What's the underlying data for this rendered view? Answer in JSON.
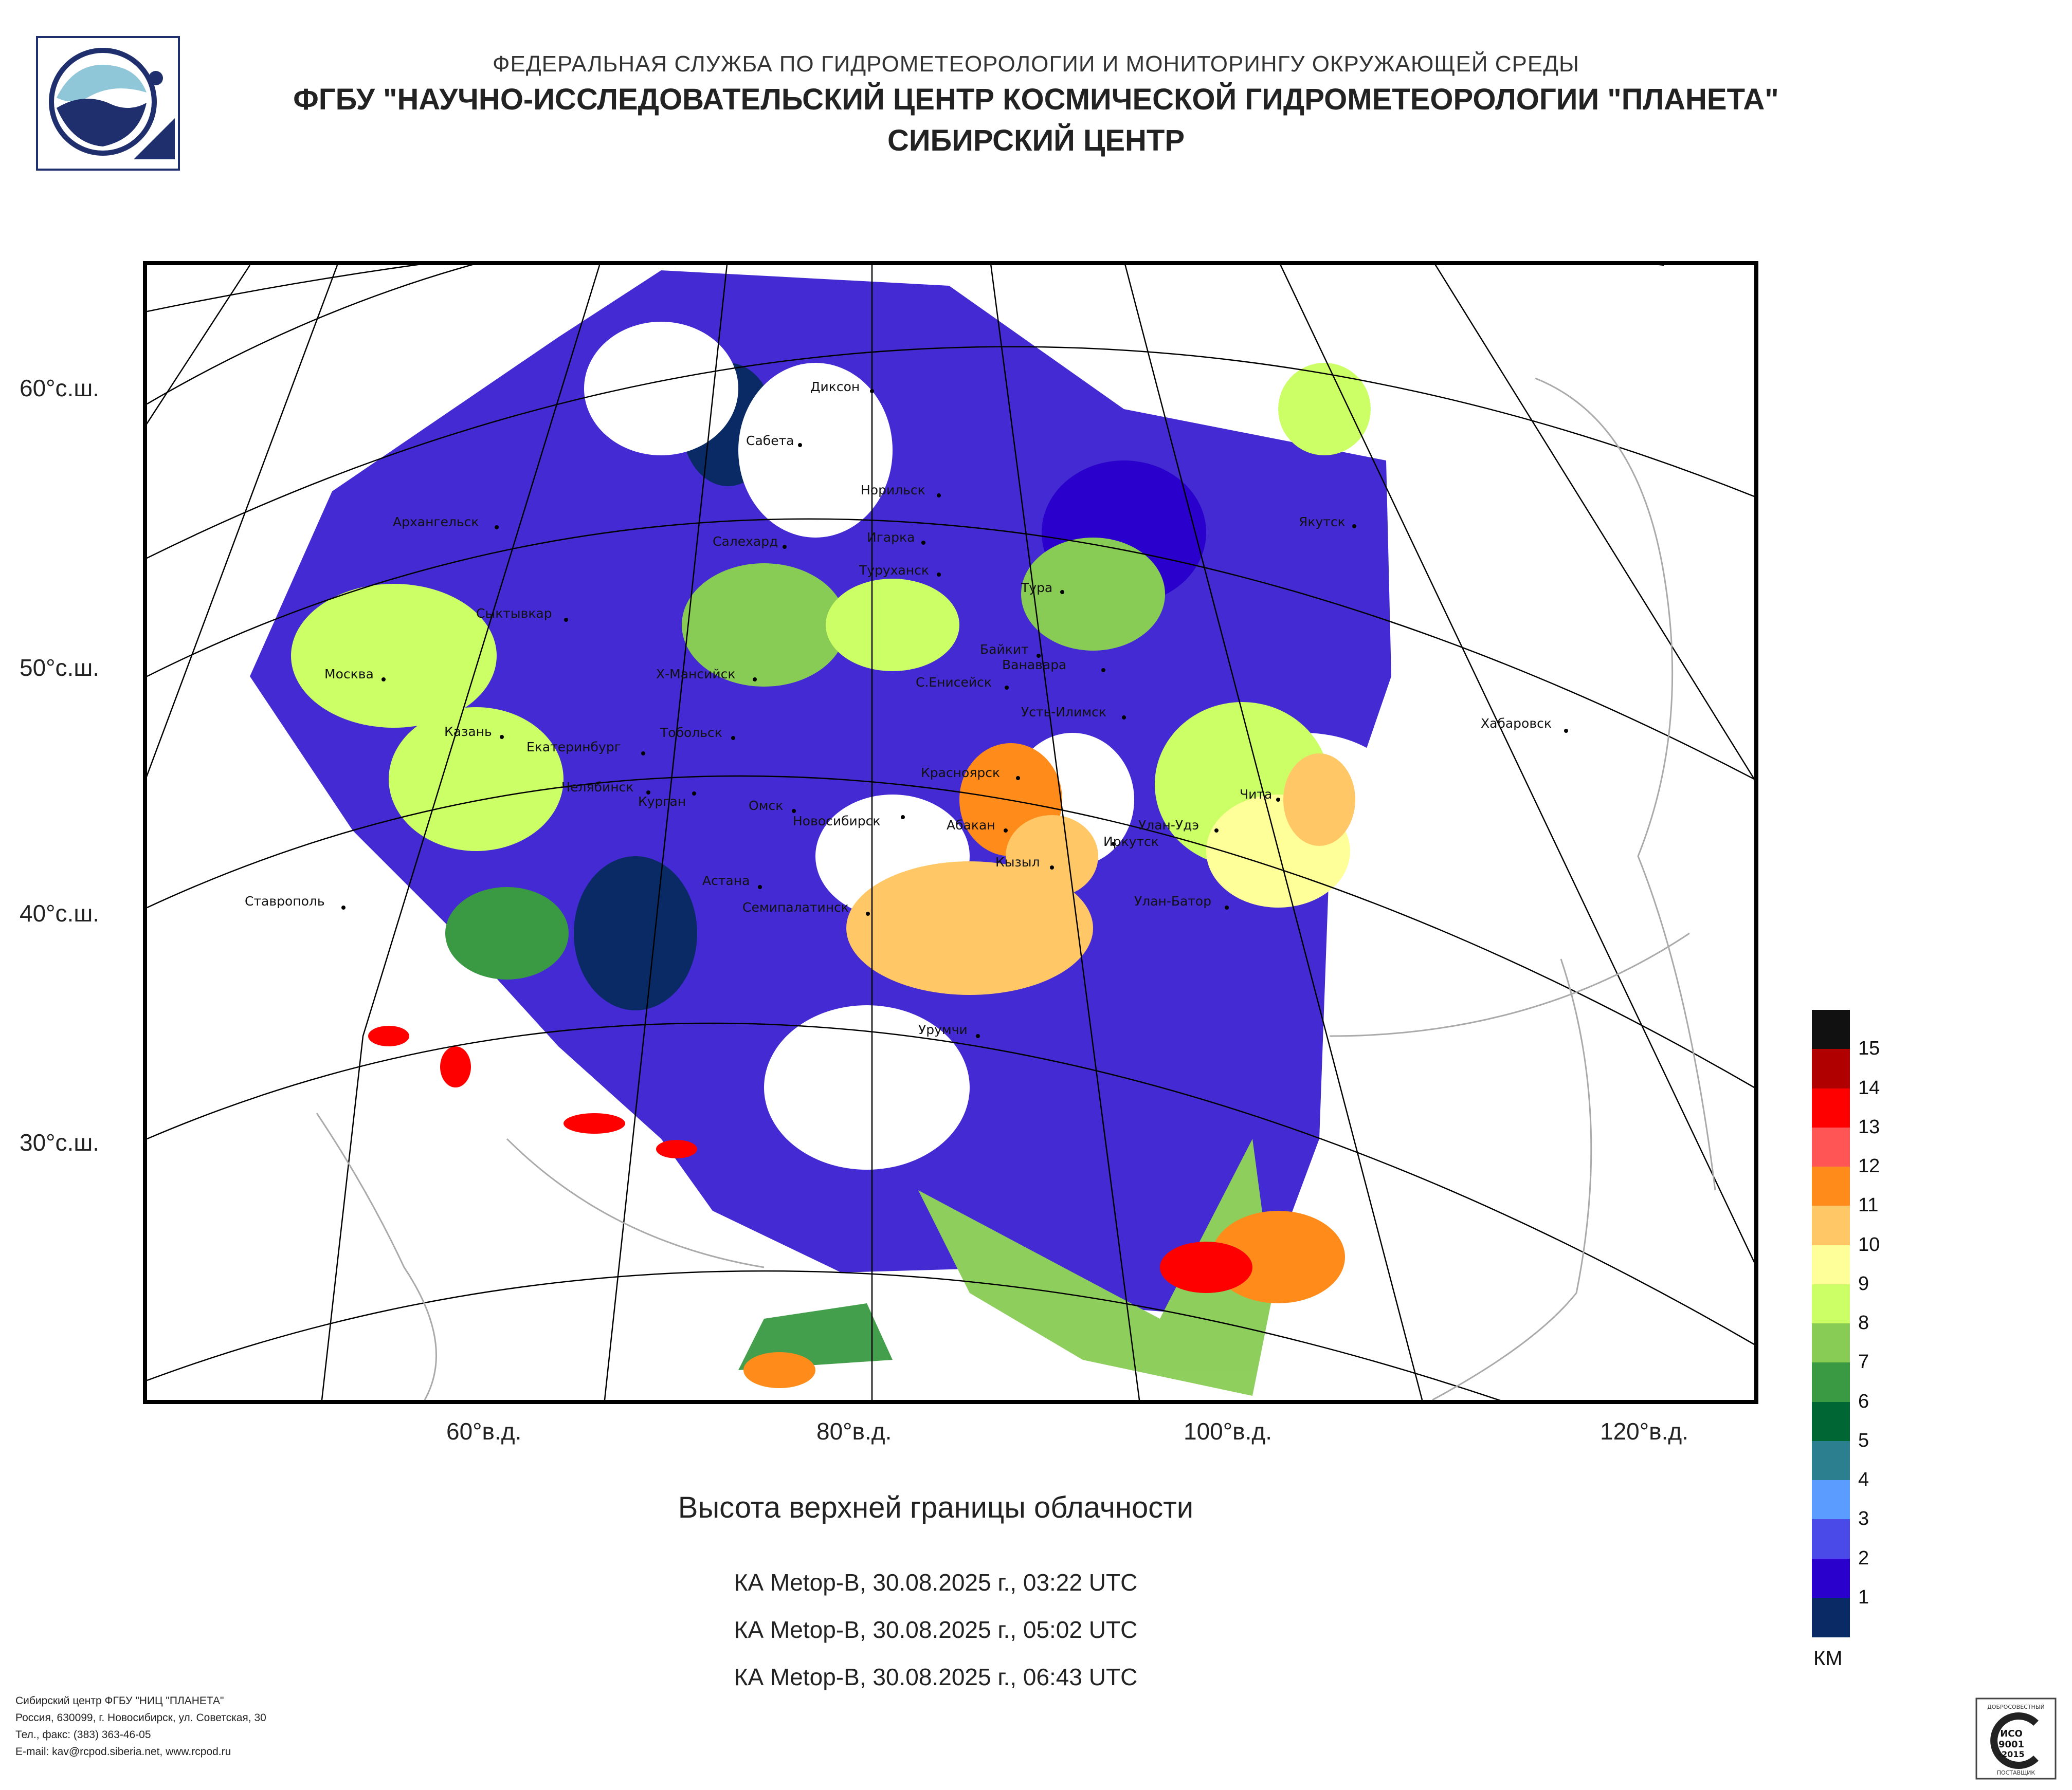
{
  "header": {
    "line1": "ФЕДЕРАЛЬНАЯ СЛУЖБА ПО ГИДРОМЕТЕОРОЛОГИИ И МОНИТОРИНГУ ОКРУЖАЮЩЕЙ СРЕДЫ",
    "line2": "ФГБУ \"НАУЧНО-ИССЛЕДОВАТЕЛЬСКИЙ ЦЕНТР КОСМИЧЕСКОЙ ГИДРОМЕТЕОРОЛОГИИ \"ПЛАНЕТА\"",
    "line3": "СИБИРСКИЙ ЦЕНТР"
  },
  "map": {
    "lat_labels": [
      "60°с.ш.",
      "50°с.ш.",
      "40°с.ш.",
      "30°с.ш."
    ],
    "lon_labels": [
      "60°в.д.",
      "80°в.д.",
      "100°в.д.",
      "120°в.д."
    ],
    "cities": [
      {
        "name": "Диксон"
      },
      {
        "name": "Сабета"
      },
      {
        "name": "Норильск"
      },
      {
        "name": "Якутск"
      },
      {
        "name": "Архангельск"
      },
      {
        "name": "Салехард"
      },
      {
        "name": "Игарка"
      },
      {
        "name": "Туруханск"
      },
      {
        "name": "Тура"
      },
      {
        "name": "Сыктывкар"
      },
      {
        "name": "Байкит"
      },
      {
        "name": "Ванавара"
      },
      {
        "name": "Москва"
      },
      {
        "name": "Х-Мансийск"
      },
      {
        "name": "С.Енисейск"
      },
      {
        "name": "Усть-Илимск"
      },
      {
        "name": "Хабаровск"
      },
      {
        "name": "Казань"
      },
      {
        "name": "Екатеринбург"
      },
      {
        "name": "Тобольск"
      },
      {
        "name": "Красноярск"
      },
      {
        "name": "Чита"
      },
      {
        "name": "Челябинск"
      },
      {
        "name": "Курган"
      },
      {
        "name": "Омск"
      },
      {
        "name": "Новосибирск"
      },
      {
        "name": "Абакан"
      },
      {
        "name": "Улан-Удэ"
      },
      {
        "name": "Иркутск"
      },
      {
        "name": "Кызыл"
      },
      {
        "name": "Астана"
      },
      {
        "name": "Ставрополь"
      },
      {
        "name": "Семипалатинск"
      },
      {
        "name": "Улан-Батор"
      },
      {
        "name": "Урумчи"
      }
    ]
  },
  "product": {
    "title": "Высота верхней границы облачности",
    "passes": [
      "КА Metop-B, 30.08.2025 г., 03:22 UTC",
      "КА Metop-B, 30.08.2025 г., 05:02 UTC",
      "КА Metop-B, 30.08.2025 г., 06:43 UTC"
    ]
  },
  "legend": {
    "unit": "КМ",
    "levels": [
      "15",
      "14",
      "13",
      "12",
      "11",
      "10",
      "9",
      "8",
      "7",
      "6",
      "5",
      "4",
      "3",
      "2",
      "1"
    ],
    "colors": [
      "#111111",
      "#b00000",
      "#ff0000",
      "#ff5555",
      "#ff8c1a",
      "#ffc766",
      "#ffff99",
      "#ccff66",
      "#88cc55",
      "#3a9a44",
      "#006633",
      "#2b7f8e",
      "#5a9cff",
      "#4a4ae8",
      "#2a00cc",
      "#0a2a66"
    ]
  },
  "footer": {
    "line1": "Сибирский центр ФГБУ \"НИЦ \"ПЛАНЕТА\"",
    "line2": "Россия, 630099, г. Новосибирск, ул. Советская, 30",
    "line3": "Тел., факс: (383) 363-46-05",
    "line4": "E-mail: kav@rcpod.siberia.net, www.rcpod.ru"
  },
  "iso_badge": {
    "top": "ДОБРОСОВЕСТНЫЙ",
    "l1": "ИСО",
    "l2": "9001",
    "l3": "-2015",
    "bottom": "ПОСТАВЩИК"
  }
}
